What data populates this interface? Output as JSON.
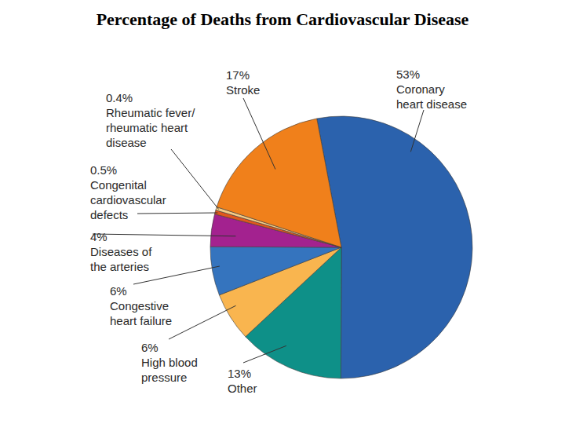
{
  "chart_data": {
    "type": "pie",
    "title": "Percentage of Deaths from Cardiovascular Disease",
    "categories": [
      "Coronary heart disease",
      "Other",
      "High blood pressure",
      "Congestive heart failure",
      "Diseases of the arteries",
      "Congenital cardiovascular defects",
      "Rheumatic fever/rheumatic heart disease",
      "Stroke"
    ],
    "values": [
      53,
      13,
      6,
      6,
      4,
      0.5,
      0.4,
      17
    ],
    "value_labels": [
      "53%",
      "13%",
      "6%",
      "6%",
      "4%",
      "0.5%",
      "0.4%",
      "17%"
    ],
    "colors": [
      "#2b62ad",
      "#0e9088",
      "#f9b54f",
      "#3574be",
      "#a3228f",
      "#e0581d",
      "#f5cc86",
      "#f0801b"
    ],
    "data_labels": true
  }
}
